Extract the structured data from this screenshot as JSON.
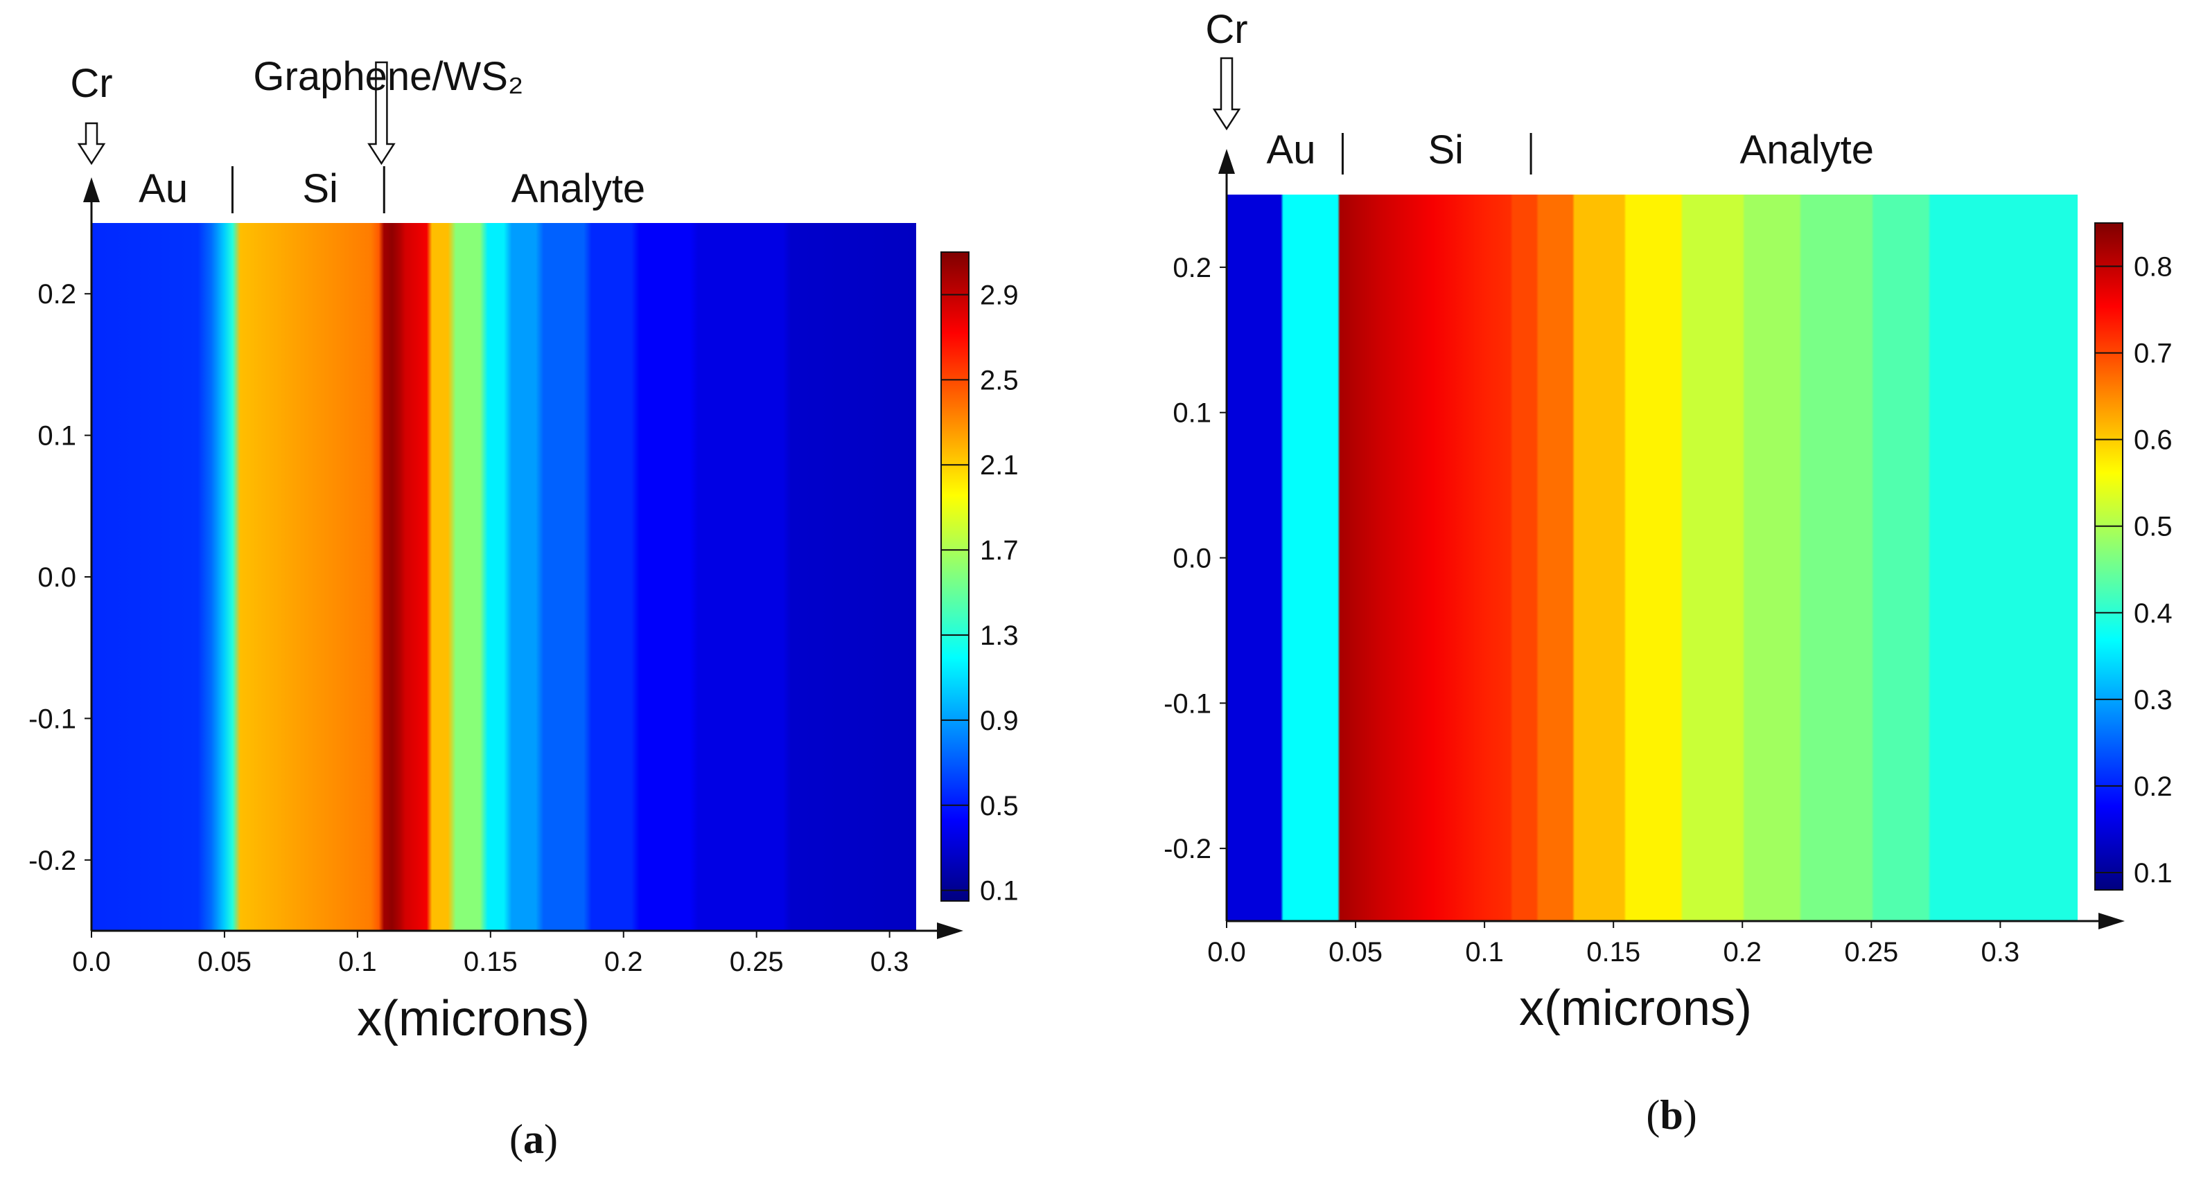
{
  "colormap": [
    "#00007f",
    "#0000ff",
    "#0080ff",
    "#00ffff",
    "#80ff80",
    "#ffff00",
    "#ff8000",
    "#ff0000",
    "#7f0000"
  ],
  "chart_data": [
    {
      "id": "a",
      "type": "heatmap",
      "panel_label": "a",
      "xlabel": "x(microns)",
      "ylabel": "",
      "xlim": [
        0,
        0.31
      ],
      "ylim": [
        -0.25,
        0.25
      ],
      "x_ticks": [
        "0.0",
        "0.05",
        "0.1",
        "0.15",
        "0.2",
        "0.25",
        "0.3"
      ],
      "x_tick_values": [
        0,
        0.05,
        0.1,
        0.15,
        0.2,
        0.25,
        0.3
      ],
      "y_ticks": [
        "0.2",
        "0.1",
        "0.0",
        "-0.1",
        "-0.2"
      ],
      "y_tick_values": [
        0.2,
        0.1,
        0.0,
        -0.1,
        -0.2
      ],
      "colorbar": {
        "range": [
          0.05,
          3.1
        ],
        "ticks": [
          "2.9",
          "2.5",
          "2.1",
          "1.7",
          "1.3",
          "0.9",
          "0.5",
          "0.1"
        ],
        "tick_values": [
          2.9,
          2.5,
          2.1,
          1.7,
          1.3,
          0.9,
          0.5,
          0.1
        ]
      },
      "layers": [
        {
          "label": "Au",
          "x": 0.027
        },
        {
          "label": "Si",
          "x": 0.086
        },
        {
          "label": "Analyte",
          "x": 0.183
        }
      ],
      "layer_boundaries": [
        0.053,
        0.11
      ],
      "arrow_labels": [
        {
          "label": "Cr",
          "x": 0.0
        },
        {
          "label": "Graphene/WS₂",
          "x": 0.109
        }
      ],
      "field_profile": {
        "x": [
          0,
          0.04,
          0.045,
          0.05,
          0.053,
          0.056,
          0.08,
          0.105,
          0.108,
          0.11,
          0.113,
          0.116,
          0.118,
          0.122,
          0.126,
          0.128,
          0.134,
          0.137,
          0.146,
          0.149,
          0.155,
          0.158,
          0.167,
          0.17,
          0.185,
          0.188,
          0.203,
          0.206,
          0.225,
          0.228,
          0.26,
          0.263,
          0.31
        ],
        "values": [
          0.55,
          0.58,
          0.75,
          1.05,
          1.3,
          2.15,
          2.25,
          2.35,
          2.45,
          3.0,
          3.05,
          2.95,
          2.85,
          2.8,
          2.75,
          2.15,
          2.15,
          1.6,
          1.6,
          1.15,
          1.15,
          0.9,
          0.9,
          0.72,
          0.72,
          0.55,
          0.55,
          0.42,
          0.42,
          0.35,
          0.35,
          0.28,
          0.25
        ]
      }
    },
    {
      "id": "b",
      "type": "heatmap",
      "panel_label": "b",
      "xlabel": "x(microns)",
      "ylabel": "",
      "xlim": [
        0,
        0.33
      ],
      "ylim": [
        -0.25,
        0.25
      ],
      "x_ticks": [
        "0.0",
        "0.05",
        "0.1",
        "0.15",
        "0.2",
        "0.25",
        "0.3"
      ],
      "x_tick_values": [
        0,
        0.05,
        0.1,
        0.15,
        0.2,
        0.25,
        0.3
      ],
      "y_ticks": [
        "0.2",
        "0.1",
        "0.0",
        "-0.1",
        "-0.2"
      ],
      "y_tick_values": [
        0.2,
        0.1,
        0.0,
        -0.1,
        -0.2
      ],
      "colorbar": {
        "range": [
          0.08,
          0.85
        ],
        "ticks": [
          "0.8",
          "0.7",
          "0.6",
          "0.5",
          "0.4",
          "0.3",
          "0.2",
          "0.1"
        ],
        "tick_values": [
          0.8,
          0.7,
          0.6,
          0.5,
          0.4,
          0.3,
          0.2,
          0.1
        ]
      },
      "layers": [
        {
          "label": "Au",
          "x": 0.025
        },
        {
          "label": "Si",
          "x": 0.085
        },
        {
          "label": "Analyte",
          "x": 0.225
        }
      ],
      "layer_boundaries": [
        0.045,
        0.118
      ],
      "arrow_labels": [
        {
          "label": "Cr",
          "x": 0.0
        }
      ],
      "field_profile": {
        "x": [
          0,
          0.021,
          0.022,
          0.043,
          0.044,
          0.06,
          0.08,
          0.1,
          0.11,
          0.111,
          0.12,
          0.121,
          0.134,
          0.135,
          0.154,
          0.155,
          0.176,
          0.177,
          0.2,
          0.201,
          0.222,
          0.223,
          0.25,
          0.251,
          0.272,
          0.273,
          0.33
        ],
        "values": [
          0.15,
          0.15,
          0.37,
          0.37,
          0.82,
          0.79,
          0.76,
          0.73,
          0.72,
          0.7,
          0.7,
          0.67,
          0.67,
          0.61,
          0.61,
          0.57,
          0.57,
          0.52,
          0.52,
          0.49,
          0.49,
          0.46,
          0.46,
          0.43,
          0.43,
          0.39,
          0.39
        ]
      }
    }
  ]
}
